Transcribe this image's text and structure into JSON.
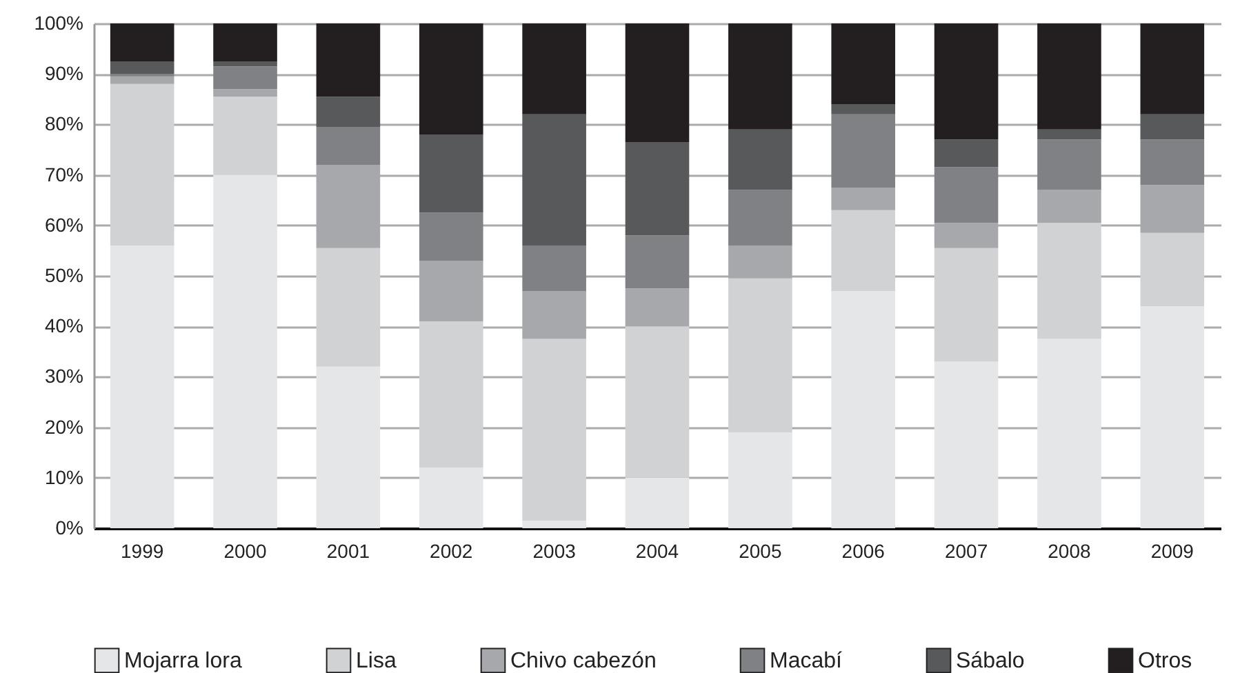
{
  "chart_data": {
    "type": "bar",
    "stacked": true,
    "categories": [
      "1999",
      "2000",
      "2001",
      "2002",
      "2003",
      "2004",
      "2005",
      "2006",
      "2007",
      "2008",
      "2009"
    ],
    "series": [
      {
        "name": "Mojarra lora",
        "color": "#e5e6e8",
        "values": [
          56,
          70,
          32,
          12,
          1.5,
          10,
          19,
          47,
          33,
          37.5,
          44
        ]
      },
      {
        "name": "Lisa",
        "color": "#d1d2d4",
        "values": [
          32,
          15.5,
          23.5,
          29,
          36,
          30,
          30.5,
          16,
          22.5,
          23,
          14.5
        ]
      },
      {
        "name": "Chivo cabezón",
        "color": "#a7a8ab",
        "values": [
          1.5,
          1.5,
          16.5,
          12,
          9.5,
          7.5,
          6.5,
          4.5,
          5,
          6.5,
          9.5
        ]
      },
      {
        "name": "Macabí",
        "color": "#808184",
        "values": [
          0.5,
          4.5,
          7.5,
          9.5,
          9,
          10.5,
          11,
          14.5,
          11,
          10,
          9
        ]
      },
      {
        "name": "Sábalo",
        "color": "#58595b",
        "values": [
          2.5,
          1,
          6,
          15.5,
          26,
          18.5,
          12,
          2,
          5.5,
          2,
          5
        ]
      },
      {
        "name": "Otros",
        "color": "#231f20",
        "values": [
          7.5,
          7.5,
          14.5,
          22,
          18,
          23.5,
          21,
          16,
          23,
          21,
          18
        ]
      }
    ],
    "ylim": [
      0,
      100
    ],
    "yticks": [
      {
        "value": 0,
        "label": "0%"
      },
      {
        "value": 10,
        "label": "10%"
      },
      {
        "value": 20,
        "label": "20%"
      },
      {
        "value": 30,
        "label": "30%"
      },
      {
        "value": 40,
        "label": "40%"
      },
      {
        "value": 50,
        "label": "50%"
      },
      {
        "value": 60,
        "label": "60%"
      },
      {
        "value": 70,
        "label": "70%"
      },
      {
        "value": 80,
        "label": "80%"
      },
      {
        "value": 90,
        "label": "90%"
      },
      {
        "value": 100,
        "label": "100%"
      }
    ],
    "grid": "y",
    "legend": "bottom"
  }
}
